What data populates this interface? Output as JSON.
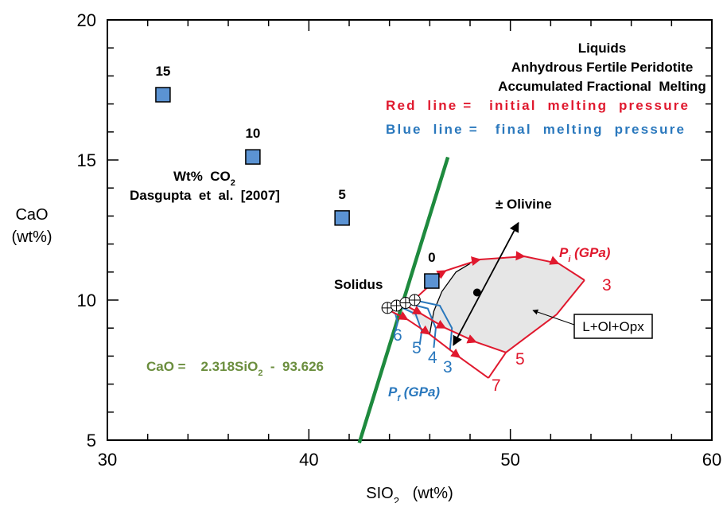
{
  "chart_data": {
    "type": "scatter",
    "xlim": [
      30,
      60
    ],
    "ylim": [
      5,
      20
    ],
    "xticks": [
      30,
      40,
      50,
      60
    ],
    "yticks": [
      5,
      10,
      15,
      20
    ],
    "xminorticks": [
      32,
      34,
      36,
      38,
      42,
      44,
      46,
      48,
      52,
      54,
      56,
      58
    ],
    "yminorticks": [
      6,
      7,
      8,
      9,
      11,
      12,
      13,
      14,
      16,
      17,
      18,
      19
    ],
    "xlabel": [
      "SIO",
      "2",
      "   (wt%)"
    ],
    "ylabel": [
      "CaO",
      "(wt%)"
    ],
    "points": {
      "color": "#5b93d3",
      "x": [
        32.76,
        37.22,
        41.65,
        46.1
      ],
      "y": [
        17.33,
        15.11,
        12.93,
        10.68
      ],
      "labels": [
        "15",
        "10",
        "5",
        "0"
      ]
    },
    "co2_label": [
      "Wt%  CO",
      "2"
    ],
    "source": "Dasgupta  et  al.  [2007]",
    "fit_line": {
      "color": "#1e8a3e",
      "x": [
        42.5,
        46.9
      ],
      "y": [
        4.9,
        15.1
      ],
      "equation": [
        "CaO =    2.318SiO",
        "2",
        "  -  93.626"
      ],
      "equation_color": "#6b8e3e"
    },
    "legend_text": {
      "black": [
        "Liquids",
        "Anhydrous Fertile Peridotite",
        "Accumulated Fractional  Melting"
      ],
      "red": "Red  line =   initial  melting  pressure",
      "blue": "Blue  line =   final  melting  pressure"
    },
    "red_color": "#e0192e",
    "blue_color": "#2a78bd",
    "red_lines": [
      {
        "label": "3",
        "x": [
          45.2,
          46.8,
          48.5,
          50.7,
          52.4,
          53.68
        ],
        "y": [
          10.0,
          11.05,
          11.45,
          11.56,
          11.3,
          10.71
        ]
      },
      {
        "label": "5",
        "x": [
          44.6,
          45.6,
          46.78,
          48.3,
          49.78
        ],
        "y": [
          9.89,
          9.5,
          9.0,
          8.5,
          8.13
        ]
      },
      {
        "label": "7",
        "x": [
          44.0,
          44.9,
          45.99,
          47.5,
          48.91
        ],
        "y": [
          9.63,
          9.3,
          8.78,
          7.95,
          7.22
        ]
      }
    ],
    "boundary": {
      "x": [
        53.68,
        52.3,
        50.72,
        49.78,
        48.91
      ],
      "y": [
        10.71,
        9.49,
        8.64,
        8.13,
        7.22
      ]
    },
    "blue_lines": [
      {
        "label": "6",
        "x": [
          43.9,
          44.3,
          44.4,
          44.3
        ],
        "y": [
          9.7,
          9.5,
          9.2,
          8.9
        ]
      },
      {
        "label": "5",
        "x": [
          44.4,
          45.3,
          45.6,
          45.5
        ],
        "y": [
          9.8,
          9.5,
          8.9,
          8.4
        ]
      },
      {
        "label": "4",
        "x": [
          44.8,
          45.9,
          46.3,
          46.2
        ],
        "y": [
          9.9,
          9.7,
          9.0,
          8.3
        ]
      },
      {
        "label": "3",
        "x": [
          45.2,
          46.5,
          47.1,
          47.0
        ],
        "y": [
          10.0,
          9.8,
          9.0,
          8.2
        ]
      }
    ],
    "black_line": {
      "x": [
        46.0,
        46.2,
        46.6,
        47.3,
        48.0
      ],
      "y": [
        8.8,
        9.6,
        10.3,
        11.0,
        11.3
      ]
    },
    "solidus": {
      "label": "Solidus",
      "x": [
        43.9,
        44.35,
        44.8,
        45.25
      ],
      "y": [
        9.72,
        9.8,
        9.9,
        10.0
      ]
    },
    "olivine": {
      "label": "± Olivine",
      "x": [
        47.17,
        50.4
      ],
      "y": [
        8.39,
        12.76
      ],
      "dot_x": 48.35,
      "dot_y": 10.27
    },
    "pi_label": [
      "P",
      "i",
      " (GPa)"
    ],
    "pf_label": [
      "P",
      "f",
      " (GPa)"
    ],
    "field_label": "L+Ol+Opx"
  }
}
